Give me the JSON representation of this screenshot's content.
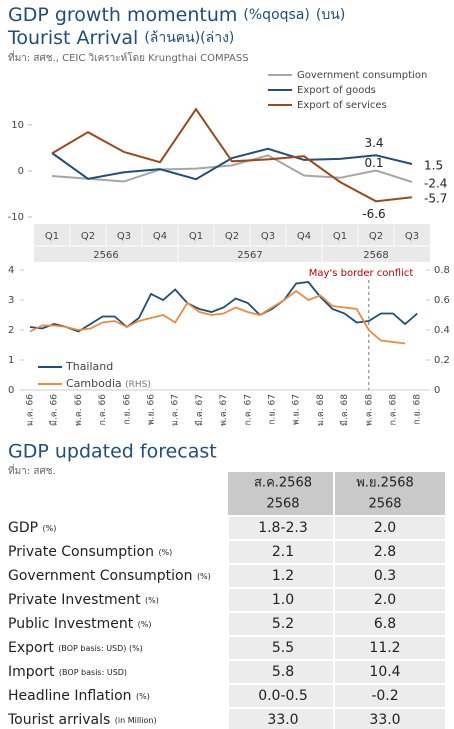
{
  "header": {
    "title1": "GDP growth momentum",
    "title1_unit": "(%qoqsa)",
    "title1_note": "(บน)",
    "title2": "Tourist Arrival",
    "title2_note": "(ล้านคน)(ล่าง)",
    "source": "ที่มา: สศช., CEIC วิเคราะห์โดย Krungthai COMPASS"
  },
  "chart_data": [
    {
      "type": "line",
      "categories": [
        "Q1",
        "Q2",
        "Q3",
        "Q4",
        "Q1",
        "Q2",
        "Q3",
        "Q4",
        "Q1",
        "Q2",
        "Q3"
      ],
      "category_groups": [
        "2566",
        "2566",
        "2566",
        "2566",
        "2567",
        "2567",
        "2567",
        "2567",
        "2568",
        "2568",
        "2568"
      ],
      "ylim": [
        -10,
        18
      ],
      "yticks": [
        -10,
        0,
        10
      ],
      "series": [
        {
          "name": "Government consumption",
          "color": "#a6a6a6",
          "values": [
            -1.1,
            -1.7,
            -2.3,
            0.3,
            0.5,
            1.2,
            3.4,
            -1.0,
            -1.5,
            0.1,
            -2.4
          ],
          "value_labels": [
            null,
            null,
            null,
            null,
            null,
            null,
            null,
            null,
            null,
            "0.1",
            "-2.4"
          ]
        },
        {
          "name": "Export of goods",
          "color": "#1f4e79",
          "values": [
            3.9,
            -1.7,
            -0.3,
            0.4,
            -1.8,
            2.8,
            4.8,
            2.4,
            2.6,
            3.4,
            1.5
          ],
          "value_labels": [
            null,
            null,
            null,
            null,
            null,
            null,
            null,
            null,
            null,
            "3.4",
            "1.5"
          ]
        },
        {
          "name": "Export of services",
          "color": "#9c4a1a",
          "values": [
            3.8,
            8.4,
            4.1,
            1.9,
            13.4,
            2.1,
            2.5,
            3.2,
            -2.4,
            -6.6,
            -5.7
          ],
          "value_labels": [
            null,
            null,
            null,
            null,
            null,
            null,
            null,
            null,
            null,
            "-6.6",
            "-5.7"
          ]
        }
      ]
    },
    {
      "type": "line",
      "categories": [
        "ม.ค. 66",
        null,
        "มี.ค. 66",
        null,
        "พ.ค. 66",
        null,
        "ก.ค. 66",
        null,
        "ก.ย. 66",
        null,
        "พ.ย. 66",
        null,
        "ม.ค. 67",
        null,
        "มี.ค. 67",
        null,
        "พ.ค. 67",
        null,
        "ก.ค. 67",
        null,
        "ก.ย. 67",
        null,
        "พ.ย. 67",
        null,
        "ม.ค. 68",
        null,
        "มี.ค. 68",
        null,
        "พ.ค. 68",
        null,
        "ก.ค. 68",
        null,
        "ก.ย. 68"
      ],
      "ylim": [
        0,
        4
      ],
      "yticks": [
        0,
        1,
        2,
        3,
        4
      ],
      "y2lim": [
        0,
        0.8
      ],
      "y2ticks": [
        0,
        0.2,
        0.4,
        0.6,
        0.8
      ],
      "rhs_label": "(RHS)",
      "annotation": {
        "text": "May's border conflict",
        "category": "พ.ค. 68"
      },
      "series": [
        {
          "name": "Thailand",
          "color": "#1f4e79",
          "values": [
            2.1,
            2.05,
            2.2,
            2.1,
            1.95,
            2.2,
            2.45,
            2.45,
            2.1,
            2.4,
            3.2,
            3.0,
            3.35,
            2.9,
            2.7,
            2.6,
            2.75,
            3.05,
            2.9,
            2.5,
            2.7,
            3.0,
            3.55,
            3.6,
            3.1,
            2.7,
            2.55,
            2.25,
            2.3,
            2.55,
            2.55,
            2.2,
            2.55
          ]
        },
        {
          "name": "Cambodia",
          "color": "#f08a3c",
          "axis": "y2",
          "values": [
            0.39,
            0.43,
            0.43,
            0.42,
            0.4,
            0.41,
            0.45,
            0.46,
            0.42,
            0.46,
            0.48,
            0.5,
            0.45,
            0.58,
            0.52,
            0.5,
            0.51,
            0.55,
            0.52,
            0.5,
            0.55,
            0.6,
            0.66,
            0.6,
            0.63,
            0.56,
            0.55,
            0.54,
            0.4,
            0.33,
            0.32,
            0.31,
            null
          ]
        }
      ]
    }
  ],
  "forecast": {
    "title": "GDP updated forecast",
    "source": "ที่มา: สศช.",
    "headers": [
      {
        "period": "ส.ค.2568",
        "year": "2568"
      },
      {
        "period": "พ.ย.2568",
        "year": "2568"
      }
    ],
    "rows": [
      {
        "label": "GDP",
        "unit": "(%)",
        "values": [
          "1.8-2.3",
          "2.0"
        ]
      },
      {
        "label": "Private Consumption",
        "unit": "(%)",
        "values": [
          "2.1",
          "2.8"
        ]
      },
      {
        "label": "Government Consumption",
        "unit": "(%)",
        "values": [
          "1.2",
          "0.3"
        ]
      },
      {
        "label": "Private Investment",
        "unit": "(%)",
        "values": [
          "1.0",
          "2.0"
        ]
      },
      {
        "label": "Public Investment",
        "unit": "(%)",
        "values": [
          "5.2",
          "6.8"
        ]
      },
      {
        "label": "Export",
        "unit": "(BOP basis: USD) (%)",
        "values": [
          "5.5",
          "11.2"
        ]
      },
      {
        "label": "Import",
        "unit": "(BOP basis: USD)",
        "values": [
          "5.8",
          "10.4"
        ]
      },
      {
        "label": "Headline Inflation",
        "unit": "(%)",
        "values": [
          "0.0-0.5",
          "-0.2"
        ]
      },
      {
        "label": "Tourist arrivals",
        "unit": "(in Million)",
        "values": [
          "33.0",
          "33.0"
        ]
      }
    ]
  }
}
